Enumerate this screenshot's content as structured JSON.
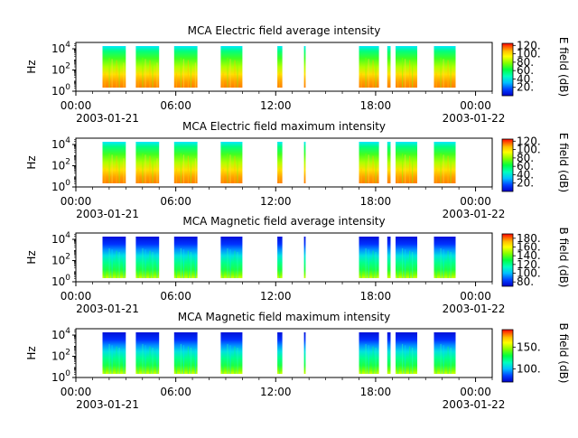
{
  "chart_data": [
    {
      "type": "heatmap",
      "title": "MCA  Electric field average intensity",
      "ylabel": "Hz",
      "y_scale": "log",
      "y_ticks": [
        {
          "exp": "0",
          "label": "10^0"
        },
        {
          "exp": "2",
          "label": "10^2"
        },
        {
          "exp": "4",
          "label": "10^4"
        }
      ],
      "x_ticks": [
        "00:00",
        "06:00",
        "12:00",
        "18:00",
        "00:00"
      ],
      "x_start_date": "2003-01-21",
      "x_end_date": "2003-01-22",
      "colorbar": {
        "label": "E field (dB)",
        "ticks": [
          "20.",
          "40.",
          "60.",
          "80.",
          "100.",
          "120."
        ],
        "range": [
          0,
          125
        ]
      },
      "style": "electric",
      "data_blocks_hours": [
        [
          1.6,
          3.0
        ],
        [
          3.6,
          5.0
        ],
        [
          5.9,
          7.3
        ],
        [
          8.7,
          10.0
        ],
        [
          12.1,
          12.4
        ],
        [
          13.7,
          13.8
        ],
        [
          17.0,
          18.2
        ],
        [
          18.7,
          18.9
        ],
        [
          19.2,
          20.5
        ],
        [
          21.5,
          22.8
        ]
      ]
    },
    {
      "type": "heatmap",
      "title": "MCA  Electric field maximum intensity",
      "ylabel": "Hz",
      "y_scale": "log",
      "y_ticks": [
        {
          "exp": "0",
          "label": "10^0"
        },
        {
          "exp": "2",
          "label": "10^2"
        },
        {
          "exp": "4",
          "label": "10^4"
        }
      ],
      "x_ticks": [
        "00:00",
        "06:00",
        "12:00",
        "18:00",
        "00:00"
      ],
      "x_start_date": "2003-01-21",
      "x_end_date": "2003-01-22",
      "colorbar": {
        "label": "E field (dB)",
        "ticks": [
          "20.",
          "40.",
          "60.",
          "80.",
          "100.",
          "120."
        ],
        "range": [
          0,
          125
        ]
      },
      "style": "electric",
      "data_blocks_hours": [
        [
          1.6,
          3.0
        ],
        [
          3.6,
          5.0
        ],
        [
          5.9,
          7.3
        ],
        [
          8.7,
          10.0
        ],
        [
          12.1,
          12.4
        ],
        [
          13.7,
          13.8
        ],
        [
          17.0,
          18.2
        ],
        [
          18.7,
          18.9
        ],
        [
          19.2,
          20.5
        ],
        [
          21.5,
          22.8
        ]
      ]
    },
    {
      "type": "heatmap",
      "title": "MCA  Magnetic field average intensity",
      "ylabel": "Hz",
      "y_scale": "log",
      "y_ticks": [
        {
          "exp": "0",
          "label": "10^0"
        },
        {
          "exp": "2",
          "label": "10^2"
        },
        {
          "exp": "4",
          "label": "10^4"
        }
      ],
      "x_ticks": [
        "00:00",
        "06:00",
        "12:00",
        "18:00",
        "00:00"
      ],
      "x_start_date": "2003-01-21",
      "x_end_date": "2003-01-22",
      "colorbar": {
        "label": "B field (dB)",
        "ticks": [
          "80.",
          "100.",
          "120.",
          "140.",
          "160.",
          "180."
        ],
        "range": [
          70,
          190
        ]
      },
      "style": "magnetic",
      "data_blocks_hours": [
        [
          1.6,
          3.0
        ],
        [
          3.6,
          5.0
        ],
        [
          5.9,
          7.3
        ],
        [
          8.7,
          10.0
        ],
        [
          12.1,
          12.4
        ],
        [
          13.7,
          13.8
        ],
        [
          17.0,
          18.2
        ],
        [
          18.7,
          18.9
        ],
        [
          19.2,
          20.5
        ],
        [
          21.5,
          22.8
        ]
      ]
    },
    {
      "type": "heatmap",
      "title": "MCA  Magnetic field maximum intensity",
      "ylabel": "Hz",
      "y_scale": "log",
      "y_ticks": [
        {
          "exp": "0",
          "label": "10^0"
        },
        {
          "exp": "2",
          "label": "10^2"
        },
        {
          "exp": "4",
          "label": "10^4"
        }
      ],
      "x_ticks": [
        "00:00",
        "06:00",
        "12:00",
        "18:00",
        "00:00"
      ],
      "x_start_date": "2003-01-21",
      "x_end_date": "2003-01-22",
      "colorbar": {
        "label": "B field (dB)",
        "ticks": [
          "100.",
          "150."
        ],
        "range": [
          70,
          190
        ]
      },
      "style": "magnetic",
      "data_blocks_hours": [
        [
          1.6,
          3.0
        ],
        [
          3.6,
          5.0
        ],
        [
          5.9,
          7.3
        ],
        [
          8.7,
          10.0
        ],
        [
          12.1,
          12.4
        ],
        [
          13.7,
          13.8
        ],
        [
          17.0,
          18.2
        ],
        [
          18.7,
          18.9
        ],
        [
          19.2,
          20.5
        ],
        [
          21.5,
          22.8
        ]
      ]
    }
  ],
  "colors": {
    "colormap": [
      "#0000c8",
      "#0040ff",
      "#00c0ff",
      "#00ffc0",
      "#00ff40",
      "#80ff00",
      "#ffff00",
      "#ffc000",
      "#ff6000",
      "#ff0000"
    ]
  }
}
